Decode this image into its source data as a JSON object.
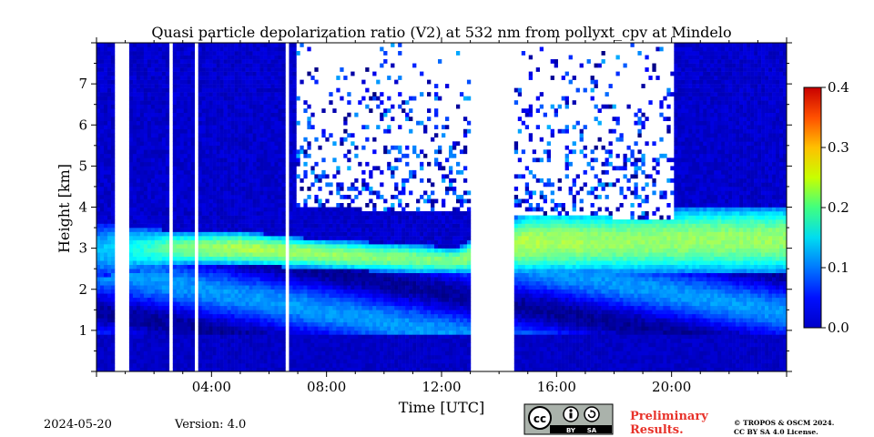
{
  "chart_data": {
    "type": "heatmap",
    "title": "Quasi particle depolarization ratio (V2) at 532 nm from pollyxt_cpv at Mindelo",
    "xlabel": "Time [UTC]",
    "ylabel": "Height [km]",
    "xlim_hours": [
      0,
      24
    ],
    "ylim_km": [
      0,
      8
    ],
    "x_ticks": [
      "04:00",
      "08:00",
      "12:00",
      "16:00",
      "20:00"
    ],
    "x_tick_hours": [
      4,
      8,
      12,
      16,
      20
    ],
    "y_ticks": [
      "1",
      "2",
      "3",
      "4",
      "5",
      "6",
      "7"
    ],
    "y_tick_values": [
      1,
      2,
      3,
      4,
      5,
      6,
      7
    ],
    "colorbar": {
      "min": 0.0,
      "max": 0.4,
      "ticks": [
        "0.0",
        "0.1",
        "0.2",
        "0.3",
        "0.4"
      ],
      "tick_values": [
        0.0,
        0.1,
        0.2,
        0.3,
        0.4
      ],
      "colormap": "jet"
    },
    "dust_layer": [
      {
        "hour": 0,
        "bottom_km": 2.3,
        "top_km": 3.6,
        "peak": 0.12
      },
      {
        "hour": 3,
        "bottom_km": 2.6,
        "top_km": 3.4,
        "peak": 0.2
      },
      {
        "hour": 5,
        "bottom_km": 2.6,
        "top_km": 3.4,
        "peak": 0.22
      },
      {
        "hour": 8,
        "bottom_km": 2.5,
        "top_km": 3.2,
        "peak": 0.21
      },
      {
        "hour": 11,
        "bottom_km": 2.4,
        "top_km": 3.1,
        "peak": 0.2
      },
      {
        "hour": 12.5,
        "bottom_km": 2.4,
        "top_km": 3.0,
        "peak": 0.2
      },
      {
        "hour": 15,
        "bottom_km": 2.4,
        "top_km": 3.9,
        "peak": 0.22
      },
      {
        "hour": 18,
        "bottom_km": 2.4,
        "top_km": 3.9,
        "peak": 0.21
      },
      {
        "hour": 21,
        "bottom_km": 2.4,
        "top_km": 4.0,
        "peak": 0.21
      },
      {
        "hour": 24,
        "bottom_km": 2.4,
        "top_km": 4.0,
        "peak": 0.21
      }
    ],
    "no_data_intervals_hours": [
      [
        0.6,
        1.1
      ],
      [
        2.5,
        2.65
      ],
      [
        3.4,
        3.5
      ],
      [
        3.75,
        3.85
      ],
      [
        6.6,
        6.75
      ],
      [
        13.0,
        14.5
      ]
    ],
    "noisy_region_hours": [
      7.0,
      20.1
    ],
    "noisy_region_bottom_km": [
      4.0,
      3.7
    ]
  },
  "footer": {
    "date": "2024-05-20",
    "version": "Version: 4.0",
    "preliminary_line1": "Preliminary",
    "preliminary_line2": "Results.",
    "copyright_line1": "© TROPOS & OSCM 2024.",
    "copyright_line2": "CC BY SA 4.0 License."
  },
  "license_badge": {
    "cc": "cc",
    "by": "BY",
    "sa": "SA"
  },
  "colors": {
    "preliminary": "#e8322a",
    "badge_bg": "#aab2ab",
    "badge_bottom": "#000000"
  }
}
